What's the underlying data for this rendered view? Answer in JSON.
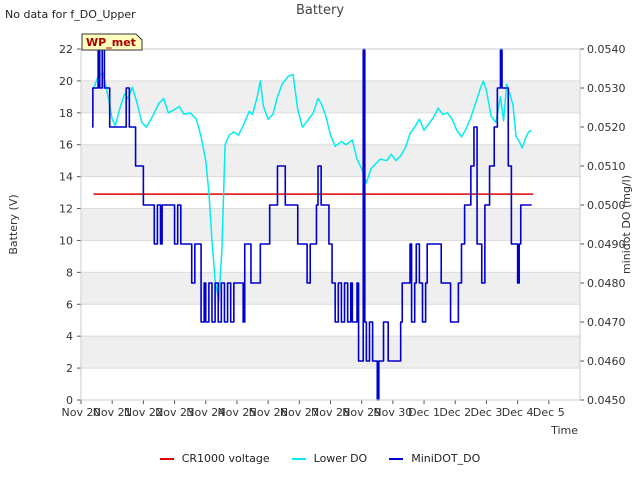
{
  "header": {
    "no_data_note": "No data for f_DO_Upper",
    "title": "Battery"
  },
  "legend": {
    "items": [
      {
        "label": "CR1000 voltage",
        "color": "#dd0000"
      },
      {
        "label": "Lower DO",
        "color": "#00eeee"
      },
      {
        "label": "MiniDOT_DO",
        "color": "#0000cc"
      }
    ]
  },
  "chart_data": {
    "type": "line",
    "title": "Battery",
    "xlabel": "Time",
    "ylabel": "Battery (V)",
    "y2label": "minidot DO (mg/l)",
    "station_badge": "WP_met",
    "xlim": [
      0,
      16
    ],
    "ylim": [
      0,
      22
    ],
    "y2lim": [
      0.045,
      0.054
    ],
    "x_ticks": [
      {
        "x": 0,
        "label": "Nov 20"
      },
      {
        "x": 1,
        "label": "Nov 21"
      },
      {
        "x": 2,
        "label": "Nov 22"
      },
      {
        "x": 3,
        "label": "Nov 23"
      },
      {
        "x": 4,
        "label": "Nov 24"
      },
      {
        "x": 5,
        "label": "Nov 25"
      },
      {
        "x": 6,
        "label": "Nov 26"
      },
      {
        "x": 7,
        "label": "Nov 27"
      },
      {
        "x": 8,
        "label": "Nov 28"
      },
      {
        "x": 9,
        "label": "Nov 29"
      },
      {
        "x": 10,
        "label": "Nov 30"
      },
      {
        "x": 11,
        "label": "Dec 1"
      },
      {
        "x": 12,
        "label": "Dec 2"
      },
      {
        "x": 13,
        "label": "Dec 3"
      },
      {
        "x": 14,
        "label": "Dec 4"
      },
      {
        "x": 15,
        "label": "Dec 5"
      }
    ],
    "y_ticks": [
      0,
      2,
      4,
      6,
      8,
      10,
      12,
      14,
      16,
      18,
      20,
      22
    ],
    "y2_ticks": [
      {
        "v": 0.045,
        "label": "0.0450"
      },
      {
        "v": 0.046,
        "label": "0.0460"
      },
      {
        "v": 0.047,
        "label": "0.0470"
      },
      {
        "v": 0.048,
        "label": "0.0480"
      },
      {
        "v": 0.049,
        "label": "0.0490"
      },
      {
        "v": 0.05,
        "label": "0.0500"
      },
      {
        "v": 0.051,
        "label": "0.0510"
      },
      {
        "v": 0.052,
        "label": "0.0520"
      },
      {
        "v": 0.053,
        "label": "0.0530"
      },
      {
        "v": 0.054,
        "label": "0.0540"
      }
    ],
    "series": [
      {
        "name": "CR1000 voltage",
        "axis": "left",
        "color": "#dd0000",
        "points": [
          [
            0.4,
            12.9
          ],
          [
            2,
            12.9
          ],
          [
            4,
            12.9
          ],
          [
            6,
            12.9
          ],
          [
            8,
            12.9
          ],
          [
            10,
            12.9
          ],
          [
            12,
            12.9
          ],
          [
            14,
            12.9
          ],
          [
            14.5,
            12.9
          ]
        ]
      },
      {
        "name": "Lower DO",
        "axis": "left",
        "color": "#00eeee",
        "points": [
          [
            0.4,
            19.5
          ],
          [
            0.55,
            20.3
          ],
          [
            0.7,
            20.5
          ],
          [
            0.85,
            19.2
          ],
          [
            1.0,
            17.6
          ],
          [
            1.1,
            17.2
          ],
          [
            1.25,
            18.3
          ],
          [
            1.4,
            19.2
          ],
          [
            1.5,
            18.9
          ],
          [
            1.65,
            19.6
          ],
          [
            1.8,
            18.6
          ],
          [
            1.95,
            17.4
          ],
          [
            2.1,
            17.1
          ],
          [
            2.3,
            17.8
          ],
          [
            2.5,
            18.6
          ],
          [
            2.65,
            18.9
          ],
          [
            2.8,
            18.0
          ],
          [
            3.0,
            18.2
          ],
          [
            3.15,
            18.4
          ],
          [
            3.3,
            17.9
          ],
          [
            3.5,
            18.0
          ],
          [
            3.7,
            17.6
          ],
          [
            3.85,
            16.5
          ],
          [
            4.0,
            15.0
          ],
          [
            4.1,
            13.0
          ],
          [
            4.2,
            10.0
          ],
          [
            4.3,
            7.5
          ],
          [
            4.42,
            6.2
          ],
          [
            4.52,
            9.5
          ],
          [
            4.62,
            16.0
          ],
          [
            4.75,
            16.6
          ],
          [
            4.9,
            16.8
          ],
          [
            5.05,
            16.6
          ],
          [
            5.2,
            17.2
          ],
          [
            5.4,
            18.1
          ],
          [
            5.5,
            17.9
          ],
          [
            5.65,
            19.0
          ],
          [
            5.75,
            20.0
          ],
          [
            5.85,
            18.4
          ],
          [
            6.0,
            17.6
          ],
          [
            6.15,
            17.9
          ],
          [
            6.3,
            19.0
          ],
          [
            6.45,
            19.8
          ],
          [
            6.65,
            20.3
          ],
          [
            6.8,
            20.4
          ],
          [
            6.95,
            18.2
          ],
          [
            7.1,
            17.1
          ],
          [
            7.3,
            17.6
          ],
          [
            7.45,
            18.0
          ],
          [
            7.6,
            18.9
          ],
          [
            7.7,
            18.6
          ],
          [
            7.85,
            17.8
          ],
          [
            8.0,
            16.6
          ],
          [
            8.15,
            15.9
          ],
          [
            8.35,
            16.2
          ],
          [
            8.5,
            16.0
          ],
          [
            8.7,
            16.3
          ],
          [
            8.85,
            15.1
          ],
          [
            9.0,
            14.5
          ],
          [
            9.15,
            13.6
          ],
          [
            9.3,
            14.5
          ],
          [
            9.45,
            14.8
          ],
          [
            9.6,
            15.1
          ],
          [
            9.8,
            15.0
          ],
          [
            9.95,
            15.4
          ],
          [
            10.1,
            15.0
          ],
          [
            10.25,
            15.3
          ],
          [
            10.4,
            15.8
          ],
          [
            10.55,
            16.7
          ],
          [
            10.7,
            17.1
          ],
          [
            10.85,
            17.6
          ],
          [
            11.0,
            16.9
          ],
          [
            11.15,
            17.3
          ],
          [
            11.3,
            17.7
          ],
          [
            11.45,
            18.3
          ],
          [
            11.6,
            17.9
          ],
          [
            11.75,
            18.0
          ],
          [
            11.9,
            17.6
          ],
          [
            12.05,
            16.9
          ],
          [
            12.2,
            16.5
          ],
          [
            12.35,
            17.0
          ],
          [
            12.5,
            17.7
          ],
          [
            12.65,
            18.6
          ],
          [
            12.8,
            19.5
          ],
          [
            12.9,
            20.0
          ],
          [
            13.0,
            19.4
          ],
          [
            13.15,
            17.8
          ],
          [
            13.3,
            17.4
          ],
          [
            13.45,
            19.0
          ],
          [
            13.55,
            17.5
          ],
          [
            13.65,
            19.8
          ],
          [
            13.75,
            19.2
          ],
          [
            13.85,
            18.5
          ],
          [
            13.95,
            16.5
          ],
          [
            14.05,
            16.2
          ],
          [
            14.15,
            15.8
          ],
          [
            14.25,
            16.4
          ],
          [
            14.35,
            16.8
          ],
          [
            14.45,
            16.9
          ]
        ]
      },
      {
        "name": "MiniDOT_DO",
        "axis": "right",
        "color": "#0000cc",
        "points": [
          [
            0.35,
            0.052
          ],
          [
            0.38,
            0.053
          ],
          [
            0.5,
            0.053
          ],
          [
            0.55,
            0.054
          ],
          [
            0.6,
            0.053
          ],
          [
            0.68,
            0.054
          ],
          [
            0.75,
            0.053
          ],
          [
            0.9,
            0.053
          ],
          [
            0.92,
            0.052
          ],
          [
            1.4,
            0.052
          ],
          [
            1.45,
            0.053
          ],
          [
            1.55,
            0.052
          ],
          [
            1.7,
            0.052
          ],
          [
            1.75,
            0.051
          ],
          [
            1.95,
            0.051
          ],
          [
            2.0,
            0.05
          ],
          [
            2.3,
            0.05
          ],
          [
            2.35,
            0.049
          ],
          [
            2.45,
            0.05
          ],
          [
            2.55,
            0.049
          ],
          [
            2.6,
            0.05
          ],
          [
            2.95,
            0.05
          ],
          [
            3.0,
            0.049
          ],
          [
            3.1,
            0.05
          ],
          [
            3.2,
            0.049
          ],
          [
            3.5,
            0.049
          ],
          [
            3.55,
            0.048
          ],
          [
            3.65,
            0.049
          ],
          [
            3.8,
            0.049
          ],
          [
            3.85,
            0.047
          ],
          [
            3.95,
            0.048
          ],
          [
            4.0,
            0.047
          ],
          [
            4.1,
            0.048
          ],
          [
            4.2,
            0.047
          ],
          [
            4.3,
            0.048
          ],
          [
            4.4,
            0.047
          ],
          [
            4.5,
            0.048
          ],
          [
            4.6,
            0.047
          ],
          [
            4.7,
            0.048
          ],
          [
            4.8,
            0.047
          ],
          [
            4.9,
            0.048
          ],
          [
            5.0,
            0.048
          ],
          [
            5.1,
            0.048
          ],
          [
            5.2,
            0.047
          ],
          [
            5.25,
            0.049
          ],
          [
            5.4,
            0.049
          ],
          [
            5.45,
            0.048
          ],
          [
            5.7,
            0.048
          ],
          [
            5.75,
            0.049
          ],
          [
            6.0,
            0.049
          ],
          [
            6.05,
            0.05
          ],
          [
            6.25,
            0.05
          ],
          [
            6.3,
            0.051
          ],
          [
            6.5,
            0.051
          ],
          [
            6.55,
            0.05
          ],
          [
            6.9,
            0.05
          ],
          [
            6.95,
            0.049
          ],
          [
            7.2,
            0.049
          ],
          [
            7.25,
            0.048
          ],
          [
            7.35,
            0.049
          ],
          [
            7.5,
            0.049
          ],
          [
            7.55,
            0.05
          ],
          [
            7.6,
            0.051
          ],
          [
            7.7,
            0.05
          ],
          [
            7.9,
            0.05
          ],
          [
            7.95,
            0.049
          ],
          [
            8.05,
            0.048
          ],
          [
            8.15,
            0.047
          ],
          [
            8.25,
            0.048
          ],
          [
            8.35,
            0.047
          ],
          [
            8.45,
            0.048
          ],
          [
            8.55,
            0.047
          ],
          [
            8.65,
            0.048
          ],
          [
            8.7,
            0.047
          ],
          [
            8.85,
            0.048
          ],
          [
            8.9,
            0.046
          ],
          [
            9.0,
            0.046
          ],
          [
            9.05,
            0.054
          ],
          [
            9.1,
            0.047
          ],
          [
            9.15,
            0.046
          ],
          [
            9.25,
            0.047
          ],
          [
            9.35,
            0.046
          ],
          [
            9.45,
            0.046
          ],
          [
            9.5,
            0.045
          ],
          [
            9.55,
            0.046
          ],
          [
            9.65,
            0.046
          ],
          [
            9.7,
            0.047
          ],
          [
            9.8,
            0.047
          ],
          [
            9.85,
            0.046
          ],
          [
            10.2,
            0.046
          ],
          [
            10.25,
            0.047
          ],
          [
            10.3,
            0.048
          ],
          [
            10.5,
            0.048
          ],
          [
            10.55,
            0.049
          ],
          [
            10.6,
            0.047
          ],
          [
            10.7,
            0.048
          ],
          [
            10.75,
            0.049
          ],
          [
            10.85,
            0.048
          ],
          [
            10.95,
            0.047
          ],
          [
            11.05,
            0.048
          ],
          [
            11.1,
            0.049
          ],
          [
            11.5,
            0.049
          ],
          [
            11.55,
            0.048
          ],
          [
            11.8,
            0.048
          ],
          [
            11.85,
            0.047
          ],
          [
            12.0,
            0.047
          ],
          [
            12.1,
            0.048
          ],
          [
            12.2,
            0.049
          ],
          [
            12.3,
            0.05
          ],
          [
            12.5,
            0.051
          ],
          [
            12.6,
            0.052
          ],
          [
            12.7,
            0.049
          ],
          [
            12.8,
            0.049
          ],
          [
            12.85,
            0.048
          ],
          [
            12.95,
            0.05
          ],
          [
            13.1,
            0.051
          ],
          [
            13.2,
            0.051
          ],
          [
            13.25,
            0.052
          ],
          [
            13.35,
            0.053
          ],
          [
            13.45,
            0.054
          ],
          [
            13.5,
            0.053
          ],
          [
            13.65,
            0.053
          ],
          [
            13.7,
            0.051
          ],
          [
            13.8,
            0.049
          ],
          [
            13.95,
            0.049
          ],
          [
            14.0,
            0.048
          ],
          [
            14.05,
            0.049
          ],
          [
            14.1,
            0.05
          ],
          [
            14.45,
            0.05
          ]
        ]
      }
    ]
  }
}
